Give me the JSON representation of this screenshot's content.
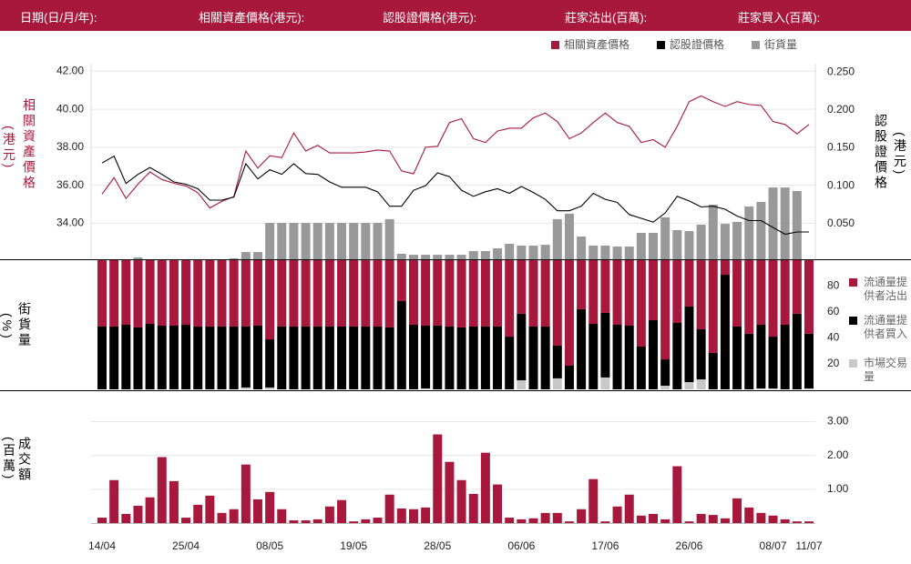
{
  "header": {
    "fields": [
      "日期(日/月/年):",
      "相關資產價格(港元):",
      "認股證價格(港元):",
      "莊家沽出(百萬):",
      "莊家買入(百萬):"
    ]
  },
  "chart_data": [
    {
      "type": "line",
      "ylabel": "相關資產價格",
      "yunit": "(港元)",
      "y2label": "認股證價格",
      "y2unit": "(港元)",
      "ylim": [
        32.1,
        42.4
      ],
      "yticks": [
        {
          "value": 34,
          "label": "34.00"
        },
        {
          "value": 36,
          "label": "36.00"
        },
        {
          "value": 38,
          "label": "38.00"
        },
        {
          "value": 40,
          "label": "40.00"
        },
        {
          "value": 42,
          "label": "42.00"
        }
      ],
      "y2lim": [
        0.003,
        0.261
      ],
      "y2ticks": [
        {
          "value": 0.05,
          "label": "0.050"
        },
        {
          "value": 0.1,
          "label": "0.100"
        },
        {
          "value": 0.15,
          "label": "0.150"
        },
        {
          "value": 0.2,
          "label": "0.200"
        },
        {
          "value": 0.25,
          "label": "0.250"
        }
      ],
      "y3lim": [
        0,
        100
      ],
      "grid": true,
      "series": [
        {
          "name": "相關資產價格",
          "color": "#a8183c",
          "values": [
            35.53,
            36.4,
            35.3,
            36.06,
            36.7,
            36.3,
            36.1,
            35.96,
            35.6,
            34.8,
            35.15,
            35.4,
            37.8,
            36.9,
            37.55,
            37.45,
            38.75,
            37.8,
            38.1,
            37.7,
            37.7,
            37.7,
            37.75,
            37.85,
            37.8,
            36.75,
            36.6,
            38.0,
            38.05,
            39.3,
            39.5,
            38.45,
            38.25,
            38.85,
            39.0,
            39.0,
            39.55,
            39.8,
            39.35,
            38.45,
            38.75,
            39.3,
            39.8,
            39.3,
            39.1,
            38.25,
            38.4,
            38.0,
            39.1,
            40.4,
            40.7,
            40.4,
            40.15,
            40.4,
            40.25,
            40.2,
            39.35,
            39.2,
            38.7,
            39.2
          ]
        },
        {
          "name": "認股證價格",
          "color": "#000000",
          "axis": "y2",
          "values": [
            0.13,
            0.139,
            0.103,
            0.115,
            0.124,
            0.115,
            0.105,
            0.102,
            0.096,
            0.081,
            0.081,
            0.085,
            0.129,
            0.109,
            0.121,
            0.115,
            0.129,
            0.116,
            0.115,
            0.105,
            0.098,
            0.098,
            0.098,
            0.092,
            0.073,
            0.073,
            0.094,
            0.1,
            0.117,
            0.112,
            0.094,
            0.086,
            0.092,
            0.096,
            0.09,
            0.099,
            0.091,
            0.082,
            0.067,
            0.067,
            0.073,
            0.09,
            0.082,
            0.078,
            0.062,
            0.057,
            0.052,
            0.064,
            0.086,
            0.08,
            0.072,
            0.073,
            0.069,
            0.06,
            0.054,
            0.054,
            0.045,
            0.036,
            0.039,
            0.039
          ]
        },
        {
          "name": "街貨量",
          "color": "#999999",
          "type": "bar",
          "axis": "y3",
          "values": [
            0,
            0,
            0,
            0.9,
            0,
            0,
            0,
            0,
            0,
            0,
            0,
            0.5,
            3.7,
            3.7,
            18.6,
            18.6,
            18.6,
            18.6,
            18.6,
            18.6,
            18.6,
            18.6,
            18.6,
            18.6,
            20.5,
            2.8,
            2.3,
            2.3,
            2.3,
            2.3,
            2.3,
            4.2,
            4.2,
            5.6,
            7.9,
            7.0,
            7.0,
            7.4,
            20.5,
            23.3,
            11.6,
            7.0,
            7.0,
            6.5,
            6.5,
            13.5,
            13.5,
            21.4,
            14.9,
            14.4,
            17.7,
            27.9,
            18.1,
            19.1,
            27.0,
            29.3,
            36.7,
            36.7,
            34.9,
            0
          ]
        }
      ]
    },
    {
      "type": "stacked_bar",
      "ylabel": "街貨量",
      "yunit": "(%)",
      "ylim": [
        0,
        100
      ],
      "yticks": [
        20,
        40,
        60,
        80
      ],
      "series": [
        {
          "name": "市場交易量",
          "color": "#c8c8c8",
          "values": [
            0,
            0,
            0,
            0,
            0,
            0,
            0,
            0,
            0,
            0,
            0,
            0,
            1.4,
            0,
            1.4,
            0,
            0,
            0,
            0,
            0,
            0,
            0,
            0,
            0,
            0,
            0,
            0,
            0.7,
            0,
            0,
            0,
            0,
            0,
            0,
            0,
            7.0,
            0,
            0,
            8.5,
            0,
            0,
            0,
            9.2,
            0,
            0,
            0,
            0,
            2.8,
            0,
            5.6,
            7.7,
            0,
            0,
            0,
            0,
            0.7,
            0.7,
            0,
            0,
            0.7
          ]
        },
        {
          "name": "流通量提供者買入",
          "color": "#000000",
          "values": [
            48.6,
            48.6,
            50.0,
            47.9,
            50.7,
            49.3,
            49.3,
            50.0,
            48.6,
            48.6,
            48.6,
            48.6,
            47.2,
            49.3,
            37.3,
            48.6,
            48.6,
            48.6,
            48.6,
            48.6,
            48.6,
            48.6,
            48.6,
            48.6,
            47.9,
            68.3,
            50.0,
            48.6,
            49.3,
            48.6,
            47.9,
            48.6,
            48.6,
            48.6,
            40.8,
            51.5,
            48.6,
            48.6,
            25.3,
            18.3,
            62.0,
            50.7,
            50.0,
            50.0,
            49.3,
            33.1,
            53.5,
            20.4,
            51.4,
            58.5,
            38.8,
            28.2,
            88.7,
            48.6,
            43.0,
            49.3,
            40.1,
            50.0,
            58.5,
            42.3
          ]
        },
        {
          "name": "流通量提供者沽出",
          "color": "#a8183c",
          "values": [
            51.4,
            51.4,
            50.0,
            52.1,
            49.3,
            50.7,
            50.7,
            50.0,
            51.4,
            51.4,
            51.4,
            51.4,
            51.4,
            50.7,
            61.3,
            51.4,
            51.4,
            51.4,
            51.4,
            51.4,
            51.4,
            51.4,
            51.4,
            51.4,
            52.1,
            31.7,
            50.0,
            50.7,
            50.7,
            51.4,
            52.1,
            51.4,
            51.4,
            51.4,
            59.2,
            41.5,
            51.4,
            51.4,
            66.2,
            81.7,
            38.0,
            49.3,
            40.8,
            50.0,
            50.7,
            66.9,
            46.5,
            76.8,
            48.6,
            35.9,
            53.5,
            71.8,
            11.3,
            51.4,
            57.0,
            50.0,
            59.2,
            50.0,
            41.5,
            57.0
          ]
        }
      ]
    },
    {
      "type": "bar",
      "ylabel": "成交額",
      "yunit": "(百萬)",
      "ylim": [
        0,
        3.2
      ],
      "yticks": [
        {
          "value": 1,
          "label": "1.00"
        },
        {
          "value": 2,
          "label": "2.00"
        },
        {
          "value": 3,
          "label": "3.00"
        }
      ],
      "grid": true,
      "color": "#a8183c",
      "categories": [
        "14/04",
        null,
        null,
        null,
        null,
        null,
        null,
        "25/04",
        null,
        null,
        null,
        null,
        null,
        null,
        "08/05",
        null,
        null,
        null,
        null,
        null,
        null,
        "19/05",
        null,
        null,
        null,
        null,
        null,
        null,
        "28/05",
        null,
        null,
        null,
        null,
        null,
        null,
        "06/06",
        null,
        null,
        null,
        null,
        null,
        null,
        "17/06",
        null,
        null,
        null,
        null,
        null,
        null,
        "26/06",
        null,
        null,
        null,
        null,
        null,
        null,
        "08/07",
        null,
        null,
        "11/07"
      ],
      "values": [
        0.16,
        1.27,
        0.27,
        0.51,
        0.76,
        1.95,
        1.24,
        0.16,
        0.54,
        0.81,
        0.3,
        0.41,
        1.73,
        0.7,
        0.92,
        0.41,
        0.08,
        0.08,
        0.11,
        0.49,
        0.68,
        0.05,
        0.11,
        0.16,
        0.84,
        0.43,
        0.41,
        0.46,
        2.62,
        1.81,
        1.27,
        0.86,
        2.08,
        1.14,
        0.16,
        0.11,
        0.14,
        0.3,
        0.3,
        0.05,
        0.41,
        1.3,
        0.05,
        0.49,
        0.84,
        0.22,
        0.27,
        0.11,
        1.68,
        0.05,
        0.27,
        0.24,
        0.14,
        0.73,
        0.46,
        0.3,
        0.22,
        0.11,
        0.05,
        0.05
      ]
    }
  ]
}
